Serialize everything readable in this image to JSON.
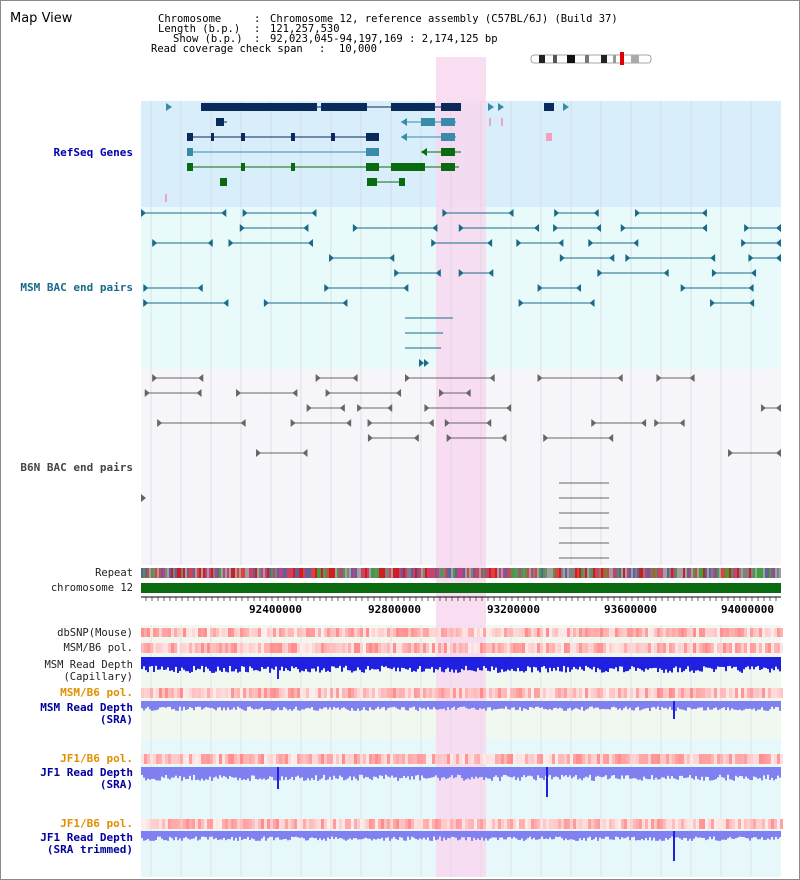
{
  "title": "Map View",
  "header": {
    "chromosome_key": "Chromosome",
    "chromosome_value": "Chromosome 12, reference assembly (C57BL/6J) (Build 37)",
    "length_key": "Length (b.p.)",
    "length_value": "121,257,530",
    "show_key": "Show (b.p.)",
    "show_value": "92,023,045-94,197,169 : 2,174,125 bp",
    "coverage_key": "Read coverage check span",
    "coverage_value": "10,000"
  },
  "tracks": {
    "refseq": "RefSeq Genes",
    "msm_bac": "MSM BAC end pairs",
    "b6n_bac": "B6N BAC end pairs",
    "repeat": "Repeat",
    "chromosome": "chromosome 12",
    "dbsnp": "dbSNP(Mouse)",
    "msm_b6_pol_1": "MSM/B6 pol.",
    "msm_read_depth_cap_1": "MSM Read Depth",
    "msm_read_depth_cap_2": "(Capillary)",
    "msm_b6_pol_2": "MSM/B6 pol.",
    "msm_read_depth_sra_1": "MSM Read Depth",
    "msm_read_depth_sra_2": "(SRA)",
    "jf1_b6_pol_1": "JF1/B6 pol.",
    "jf1_read_depth_sra_1": "JF1 Read Depth",
    "jf1_read_depth_sra_2": "(SRA)",
    "jf1_b6_pol_2": "JF1/B6 pol.",
    "jf1_read_depth_trim_1": "JF1 Read Depth",
    "jf1_read_depth_trim_2": "(SRA trimmed)"
  },
  "axis": {
    "ticks": [
      "92400000",
      "92800000",
      "93200000",
      "93600000",
      "94000000"
    ]
  },
  "colors": {
    "refseq_bg": "#d8eefa",
    "bac_bg": "#e8fafa",
    "b6n_bg": "#f6f6fa",
    "highlight": "#f8d8f0",
    "gene_navy": "#0a2a5c",
    "gene_teal": "#3a8aaa",
    "gene_green": "#0a6a10",
    "chrom_green": "#0a6a10",
    "msm_line": "#1a6a8a",
    "b6n_line": "#666666",
    "depth_blue": "#2020e0",
    "depth_light": "#8080f0"
  }
}
